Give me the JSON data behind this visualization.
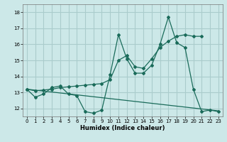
{
  "xlabel": "Humidex (Indice chaleur)",
  "bg_color": "#cce8e8",
  "grid_color": "#aacccc",
  "line_color": "#1a6b5a",
  "xlim": [
    -0.5,
    23.5
  ],
  "ylim": [
    11.5,
    18.5
  ],
  "yticks": [
    12,
    13,
    14,
    15,
    16,
    17,
    18
  ],
  "xticks": [
    0,
    1,
    2,
    3,
    4,
    5,
    6,
    7,
    8,
    9,
    10,
    11,
    12,
    13,
    14,
    15,
    16,
    17,
    18,
    19,
    20,
    21,
    22,
    23
  ],
  "series1_x": [
    0,
    1,
    2,
    3,
    4,
    5,
    6,
    7,
    8,
    9,
    10,
    11,
    12,
    13,
    14,
    15,
    16,
    17,
    18,
    19,
    20,
    21,
    22,
    23
  ],
  "series1_y": [
    13.2,
    12.7,
    12.9,
    13.3,
    13.4,
    12.9,
    12.8,
    11.8,
    11.7,
    11.9,
    14.1,
    16.6,
    15.1,
    14.2,
    14.2,
    14.7,
    16.0,
    17.7,
    16.1,
    15.8,
    13.2,
    11.8,
    11.9,
    11.8
  ],
  "series2_x": [
    0,
    1,
    2,
    3,
    4,
    5,
    6,
    7,
    8,
    9,
    10,
    11,
    12,
    13,
    14,
    15,
    16,
    17,
    18,
    19,
    20,
    21
  ],
  "series2_y": [
    13.2,
    13.1,
    13.15,
    13.2,
    13.3,
    13.35,
    13.4,
    13.45,
    13.5,
    13.55,
    13.8,
    15.0,
    15.3,
    14.6,
    14.5,
    15.1,
    15.8,
    16.2,
    16.5,
    16.6,
    16.5,
    16.5
  ],
  "series3_x": [
    0,
    23
  ],
  "series3_y": [
    13.2,
    11.85
  ]
}
